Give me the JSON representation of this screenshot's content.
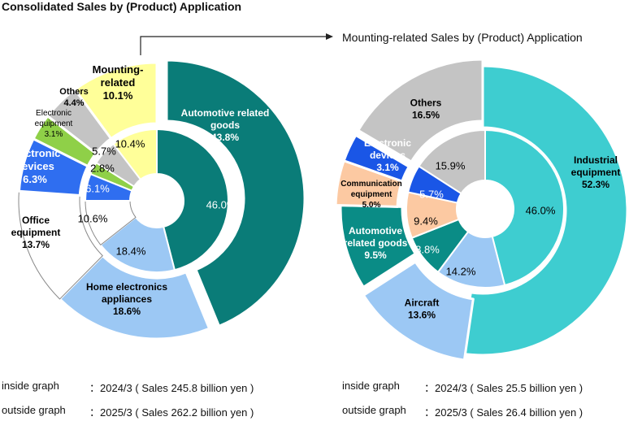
{
  "titles": {
    "main": "Consolidated Sales by (Product) Application",
    "sub": "Mounting-related Sales by (Product) Application"
  },
  "notes": {
    "left_inside_label": "inside graph",
    "left_inside_value": "：2024/3 ( Sales 245.8 billion yen )",
    "left_outside_label": "outside graph",
    "left_outside_value": "：2025/3 ( Sales 262.2 billion yen )",
    "right_inside_label": "inside graph",
    "right_inside_value": "：2024/3 ( Sales 25.5 billion yen )",
    "right_outside_label": "outside graph",
    "right_outside_value": "：2025/3 ( Sales 26.4 billion yen )"
  },
  "chart_data": [
    {
      "type": "pie",
      "title": "Consolidated Sales by (Product) Application",
      "series": [
        {
          "name": "2025/3",
          "ring": "outer",
          "slices": [
            {
              "label": "Automotive related goods",
              "value": 43.8,
              "color": "#0a7c78",
              "text_color": "#ffffff",
              "bold": true
            },
            {
              "label": "Home electronics appliances",
              "value": 18.6,
              "color": "#9cc8f4",
              "text_color": "#000000",
              "bold": true
            },
            {
              "label": "Office equipment",
              "value": 13.7,
              "color": "#ffffff",
              "text_color": "#000000",
              "bold": true
            },
            {
              "label": "Electronic devices",
              "value": 6.3,
              "color": "#2f6ef0",
              "text_color": "#ffffff",
              "bold": true
            },
            {
              "label": "Electronic equipment",
              "value": 3.1,
              "color": "#8fd048",
              "text_color": "#000000",
              "bold": false
            },
            {
              "label": "Others",
              "value": 4.4,
              "color": "#c4c4c4",
              "text_color": "#000000",
              "bold": true
            },
            {
              "label": "Mounting-related",
              "value": 10.1,
              "color": "#ffff99",
              "text_color": "#000000",
              "bold": true
            }
          ]
        },
        {
          "name": "2024/3",
          "ring": "inner",
          "slices": [
            {
              "label": "Automotive related goods",
              "value": 46.0,
              "color": "#0a7c78",
              "text_color": "#ffffff"
            },
            {
              "label": "Home electronics appliances",
              "value": 18.4,
              "color": "#9cc8f4",
              "text_color": "#000000"
            },
            {
              "label": "Office equipment",
              "value": 10.6,
              "color": "#ffffff",
              "text_color": "#000000"
            },
            {
              "label": "Electronic devices",
              "value": 6.1,
              "color": "#2f6ef0",
              "text_color": "#ffffff"
            },
            {
              "label": "Electronic equipment",
              "value": 2.8,
              "color": "#8fd048",
              "text_color": "#000000"
            },
            {
              "label": "Others",
              "value": 5.7,
              "color": "#c4c4c4",
              "text_color": "#000000"
            },
            {
              "label": "Mounting-related",
              "value": 10.4,
              "color": "#ffff99",
              "text_color": "#000000"
            }
          ]
        }
      ]
    },
    {
      "type": "pie",
      "title": "Mounting-related Sales by (Product) Application",
      "series": [
        {
          "name": "2025/3",
          "ring": "outer",
          "slices": [
            {
              "label": "Industrial equipment",
              "value": 52.3,
              "color": "#3ecdd0",
              "text_color": "#000000",
              "bold": true
            },
            {
              "label": "Aircraft",
              "value": 13.6,
              "color": "#9cc8f4",
              "text_color": "#000000",
              "bold": true
            },
            {
              "label": "Automotive related goods",
              "value": 9.5,
              "color": "#0a8c86",
              "text_color": "#ffffff",
              "bold": true
            },
            {
              "label": "Communication equipment",
              "value": 5.0,
              "color": "#fcc9a2",
              "text_color": "#000000",
              "bold": true
            },
            {
              "label": "Electronic devices",
              "value": 3.1,
              "color": "#1a56e6",
              "text_color": "#ffffff",
              "bold": true
            },
            {
              "label": "Others",
              "value": 16.5,
              "color": "#c4c4c4",
              "text_color": "#000000",
              "bold": true
            }
          ]
        },
        {
          "name": "2024/3",
          "ring": "inner",
          "slices": [
            {
              "label": "Industrial equipment",
              "value": 46.0,
              "color": "#3ecdd0",
              "text_color": "#000000"
            },
            {
              "label": "Aircraft",
              "value": 14.2,
              "color": "#9cc8f4",
              "text_color": "#000000"
            },
            {
              "label": "Automotive related goods",
              "value": 8.8,
              "color": "#0a8c86",
              "text_color": "#ffffff"
            },
            {
              "label": "Communication equipment",
              "value": 9.4,
              "color": "#fcc9a2",
              "text_color": "#000000"
            },
            {
              "label": "Electronic devices",
              "value": 5.7,
              "color": "#1a56e6",
              "text_color": "#ffffff"
            },
            {
              "label": "Others",
              "value": 15.9,
              "color": "#c4c4c4",
              "text_color": "#000000"
            }
          ]
        }
      ]
    }
  ]
}
